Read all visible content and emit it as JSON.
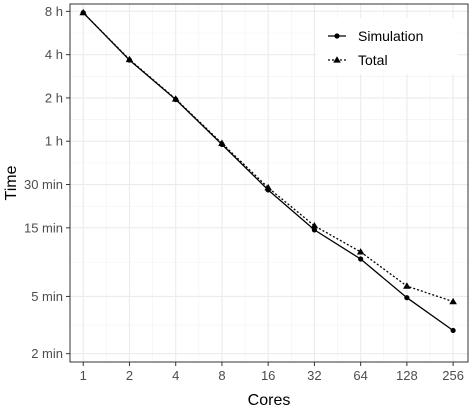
{
  "chart_data": {
    "type": "line",
    "xlabel": "Cores",
    "ylabel": "Time",
    "x_scale": "log2",
    "y_scale": "log",
    "x_ticks": [
      {
        "value": 1,
        "label": "1"
      },
      {
        "value": 2,
        "label": "2"
      },
      {
        "value": 4,
        "label": "4"
      },
      {
        "value": 8,
        "label": "8"
      },
      {
        "value": 16,
        "label": "16"
      },
      {
        "value": 32,
        "label": "32"
      },
      {
        "value": 64,
        "label": "64"
      },
      {
        "value": 128,
        "label": "128"
      },
      {
        "value": 256,
        "label": "256"
      }
    ],
    "y_ticks": [
      {
        "value": 2,
        "label": "2 min"
      },
      {
        "value": 5,
        "label": "5 min"
      },
      {
        "value": 15,
        "label": "15 min"
      },
      {
        "value": 30,
        "label": "30 min"
      },
      {
        "value": 60,
        "label": "1 h"
      },
      {
        "value": 120,
        "label": "2 h"
      },
      {
        "value": 240,
        "label": "4 h"
      },
      {
        "value": 480,
        "label": "8 h"
      }
    ],
    "x_range": [
      0.82,
      320
    ],
    "y_range": [
      1.75,
      540
    ],
    "grid": true,
    "legend_position": "top-right",
    "series": [
      {
        "name": "Simulation",
        "line": "solid",
        "marker": "circle",
        "x": [
          1,
          2,
          4,
          8,
          16,
          32,
          64,
          128,
          256
        ],
        "y": [
          470,
          220,
          117,
          57,
          27.5,
          14.5,
          9.1,
          4.9,
          2.9
        ]
      },
      {
        "name": "Total",
        "line": "dotted",
        "marker": "triangle",
        "x": [
          1,
          2,
          4,
          8,
          16,
          32,
          64,
          128,
          256
        ],
        "y": [
          470,
          222,
          118,
          58,
          28.5,
          15.5,
          10.2,
          5.9,
          4.6
        ]
      }
    ]
  }
}
